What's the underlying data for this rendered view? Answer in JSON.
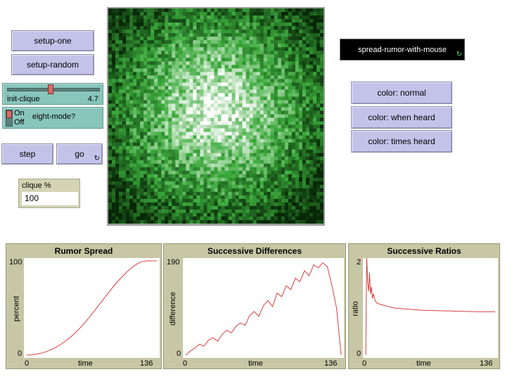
{
  "buttons": {
    "setup_one": "setup-one",
    "setup_random": "setup-random",
    "step": "step",
    "go": "go",
    "color_normal": "color: normal",
    "color_when_heard": "color: when heard",
    "color_times_heard": "color: times heard",
    "spread_with_mouse": "spread-rumor-with-mouse"
  },
  "slider": {
    "name": "init-clique",
    "value": "4.7",
    "level": 0.47
  },
  "switch": {
    "on": "On",
    "off": "Off",
    "name": "eight-mode?"
  },
  "monitor": {
    "label": "clique %",
    "value": "100"
  },
  "icons": {
    "forever": "forever-icon"
  },
  "colors": {
    "plot_line": "#d94040",
    "patch_green": "#2f8f2f",
    "button": "#c3c3ea",
    "slider_bg": "#88c5bb",
    "plot_bg": "#c7c7a6"
  },
  "chart_data": [
    {
      "type": "line",
      "title": "Rumor Spread",
      "xlabel": "time",
      "ylabel": "percent",
      "xlim": [
        0,
        136
      ],
      "ylim": [
        0,
        100
      ],
      "x_ticks": [
        "0",
        "136"
      ],
      "y_ticks": [
        "0",
        "100"
      ],
      "series": [
        {
          "x": [
            0,
            5,
            10,
            15,
            20,
            25,
            30,
            35,
            40,
            45,
            50,
            55,
            60,
            65,
            70,
            75,
            80,
            85,
            90,
            95,
            100,
            105,
            110,
            115,
            120,
            125,
            130,
            136
          ],
          "values": [
            0,
            0.3,
            0.9,
            2,
            3.5,
            5.5,
            8,
            11,
            14.5,
            18.5,
            23,
            28,
            33.5,
            39.5,
            46,
            52.5,
            59,
            65.5,
            72,
            78,
            83.5,
            88.5,
            93,
            96.5,
            99,
            100,
            100,
            100
          ]
        }
      ]
    },
    {
      "type": "line",
      "title": "Successive Differences",
      "xlabel": "time",
      "ylabel": "difference",
      "xlim": [
        0,
        136
      ],
      "ylim": [
        0,
        190
      ],
      "x_ticks": [
        "0",
        "136"
      ],
      "y_ticks": [
        "0",
        "190"
      ],
      "series": [
        {
          "x": [
            0,
            4,
            8,
            12,
            16,
            20,
            24,
            28,
            32,
            36,
            40,
            44,
            48,
            52,
            56,
            60,
            64,
            68,
            72,
            76,
            80,
            84,
            88,
            92,
            96,
            100,
            104,
            108,
            112,
            116,
            120,
            124,
            128,
            132,
            136
          ],
          "values": [
            0,
            8,
            14,
            22,
            18,
            30,
            35,
            28,
            42,
            50,
            45,
            58,
            65,
            60,
            80,
            88,
            78,
            100,
            110,
            98,
            125,
            118,
            140,
            132,
            155,
            148,
            170,
            160,
            182,
            176,
            186,
            178,
            140,
            95,
            0
          ]
        }
      ]
    },
    {
      "type": "line",
      "title": "Successive Ratios",
      "xlabel": "time",
      "ylabel": "ratio",
      "xlim": [
        0,
        136
      ],
      "ylim": [
        0,
        2
      ],
      "x_ticks": [
        "0",
        "136"
      ],
      "y_ticks": [
        "0",
        "2"
      ],
      "series": [
        {
          "x": [
            0,
            1,
            2,
            3,
            4,
            5,
            6,
            7,
            8,
            10,
            12,
            15,
            20,
            30,
            40,
            60,
            80,
            100,
            120,
            136
          ],
          "values": [
            0,
            2.1,
            1.55,
            1.35,
            1.75,
            1.3,
            1.45,
            1.2,
            1.3,
            1.15,
            1.1,
            1.08,
            1.05,
            1.0,
            0.98,
            0.95,
            0.94,
            0.93,
            0.92,
            0.92
          ]
        }
      ]
    }
  ]
}
